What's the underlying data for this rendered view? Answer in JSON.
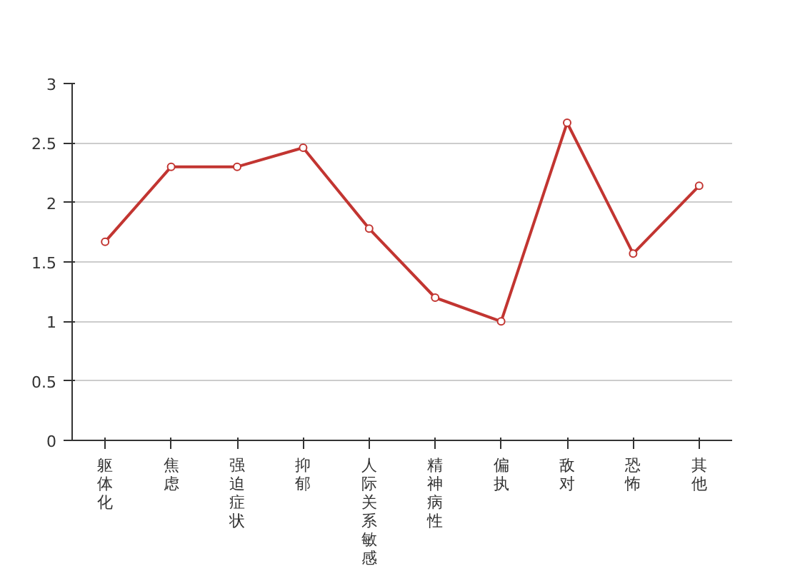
{
  "chart_data": {
    "type": "line",
    "categories": [
      "躯体化",
      "焦虑",
      "强迫症状",
      "抑郁",
      "人际关系敏感",
      "精神病性",
      "偏执",
      "敌对",
      "恐怖",
      "其他"
    ],
    "series": [
      {
        "color": "#c23531",
        "values": [
          1.67,
          2.3,
          2.3,
          2.46,
          1.78,
          1.2,
          1.0,
          2.67,
          1.57,
          2.14
        ]
      }
    ],
    "ylim": [
      0,
      3
    ],
    "yticks": [
      0,
      0.5,
      1,
      1.5,
      2,
      2.5,
      3
    ],
    "grid": "y",
    "marker": "circle",
    "line_style": "solid"
  }
}
